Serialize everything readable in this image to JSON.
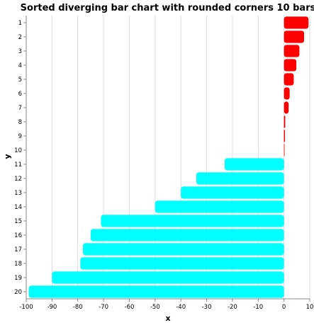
{
  "chart_data": {
    "type": "bar",
    "orientation": "horizontal",
    "title": "Sorted diverging bar chart with rounded corners 10 bars",
    "xlabel": "x",
    "ylabel": "y",
    "xlim": [
      -100,
      10
    ],
    "x_ticks": [
      -100,
      -90,
      -80,
      -70,
      -60,
      -50,
      -40,
      -30,
      -20,
      -10,
      0,
      10
    ],
    "grid": true,
    "categories": [
      "1",
      "2",
      "3",
      "4",
      "5",
      "6",
      "7",
      "8",
      "9",
      "10",
      "11",
      "12",
      "13",
      "14",
      "15",
      "16",
      "17",
      "18",
      "19",
      "20"
    ],
    "values": [
      9.5,
      7.8,
      6,
      4.8,
      3.8,
      2.2,
      1.8,
      0.5,
      0.4,
      0.2,
      -23,
      -34,
      -40,
      -50,
      -71,
      -75,
      -78,
      -79,
      -90,
      -99
    ],
    "colors": {
      "positive": "#ff0000",
      "negative": "#00ffff"
    }
  }
}
